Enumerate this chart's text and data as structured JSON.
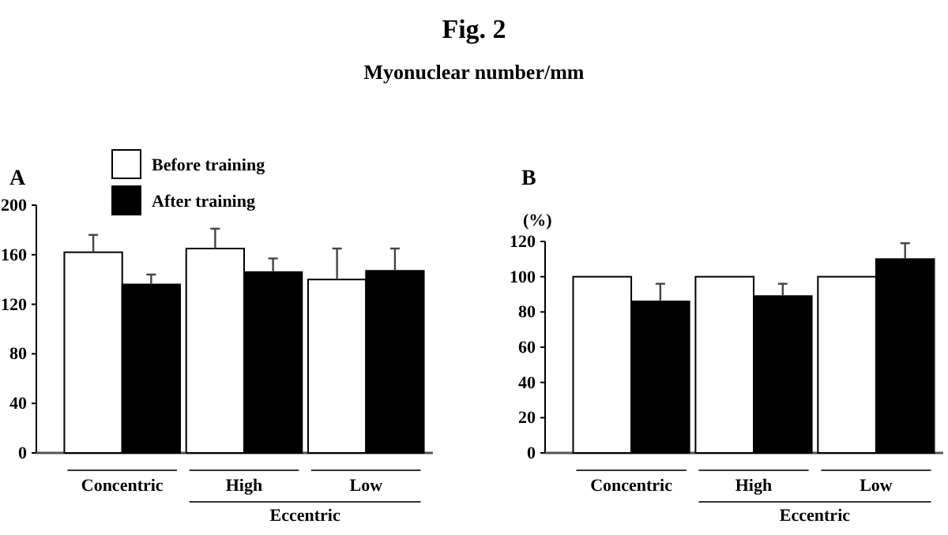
{
  "chart_data": [
    {
      "type": "bar",
      "title": "Fig. 2",
      "subtitle": "Myonuclear number/mm",
      "annotations": [
        "A",
        "Eccentric"
      ],
      "categories": [
        "Concentric",
        "High",
        "Low"
      ],
      "series": [
        {
          "name": "Before training",
          "color": "#ffffff",
          "values": [
            162,
            165,
            140
          ],
          "errors": [
            [
              162,
              176
            ],
            [
              165,
              181
            ],
            [
              140,
              165
            ]
          ]
        },
        {
          "name": "After training",
          "color": "#000000",
          "values": [
            136,
            146,
            147
          ],
          "errors": [
            [
              136,
              144
            ],
            [
              146,
              157
            ],
            [
              147,
              165
            ]
          ]
        }
      ],
      "ylim": [
        0,
        200
      ],
      "yticks": [
        0,
        40,
        80,
        120,
        160,
        200
      ],
      "grid": false,
      "legend": "top left"
    },
    {
      "type": "bar",
      "ylabel": "(%)",
      "annotations": [
        "B",
        "Eccentric"
      ],
      "categories": [
        "Concentric",
        "High",
        "Low"
      ],
      "series": [
        {
          "color": "#ffffff",
          "values": [
            100,
            100,
            100
          ]
        },
        {
          "color": "#000000",
          "values": [
            86,
            89,
            110
          ],
          "errors": [
            [
              86,
              96
            ],
            [
              89,
              96
            ],
            [
              110,
              119
            ]
          ]
        }
      ],
      "ylim": [
        0,
        120
      ],
      "yticks": [
        0,
        20,
        40,
        60,
        80,
        100,
        120
      ],
      "grid": false,
      "legend": false
    }
  ]
}
